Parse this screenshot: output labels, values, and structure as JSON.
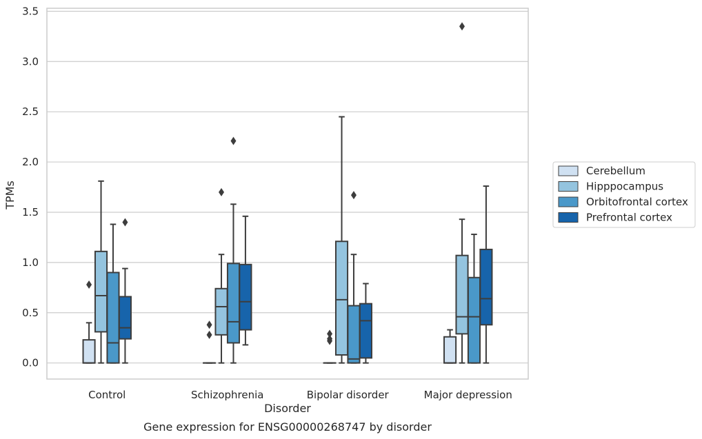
{
  "chart_data": {
    "type": "box",
    "title": "Gene expression for ENSG00000268747 by disorder",
    "xlabel": "Disorder",
    "ylabel": "TPMs",
    "ylim": [
      -0.16,
      3.53
    ],
    "yticks": [
      "0.0",
      "0.5",
      "1.0",
      "1.5",
      "2.0",
      "2.5",
      "3.0",
      "3.5"
    ],
    "categories": [
      "Control",
      "Schizophrenia",
      "Bipolar disorder",
      "Major depression"
    ],
    "legend_position": "right",
    "grid": "horizontal",
    "series": [
      {
        "name": "Cerebellum",
        "color": "#d0e1f2",
        "boxes": [
          {
            "whislo": 0.0,
            "q1": 0.0,
            "med": 0.0,
            "q3": 0.23,
            "whishi": 0.4,
            "fliers": [
              0.78
            ]
          },
          {
            "whislo": 0.0,
            "q1": 0.0,
            "med": 0.0,
            "q3": 0.0,
            "whishi": 0.0,
            "fliers": [
              0.28,
              0.38
            ]
          },
          {
            "whislo": 0.0,
            "q1": 0.0,
            "med": 0.0,
            "q3": 0.0,
            "whishi": 0.0,
            "fliers": [
              0.22,
              0.24,
              0.29
            ]
          },
          {
            "whislo": 0.0,
            "q1": 0.0,
            "med": 0.0,
            "q3": 0.26,
            "whishi": 0.33,
            "fliers": []
          }
        ]
      },
      {
        "name": "Hipppocampus",
        "color": "#94c4df",
        "boxes": [
          {
            "whislo": 0.0,
            "q1": 0.31,
            "med": 0.67,
            "q3": 1.11,
            "whishi": 1.81,
            "fliers": []
          },
          {
            "whislo": 0.0,
            "q1": 0.28,
            "med": 0.56,
            "q3": 0.74,
            "whishi": 1.08,
            "fliers": [
              1.7
            ]
          },
          {
            "whislo": 0.0,
            "q1": 0.08,
            "med": 0.63,
            "q3": 1.21,
            "whishi": 2.45,
            "fliers": []
          },
          {
            "whislo": 0.0,
            "q1": 0.29,
            "med": 0.46,
            "q3": 1.07,
            "whishi": 1.43,
            "fliers": [
              3.35
            ]
          }
        ]
      },
      {
        "name": "Orbitofrontal cortex",
        "color": "#4a98c9",
        "boxes": [
          {
            "whislo": 0.0,
            "q1": 0.0,
            "med": 0.2,
            "q3": 0.9,
            "whishi": 1.38,
            "fliers": []
          },
          {
            "whislo": 0.0,
            "q1": 0.2,
            "med": 0.41,
            "q3": 0.99,
            "whishi": 1.58,
            "fliers": [
              2.21
            ]
          },
          {
            "whislo": 0.0,
            "q1": 0.0,
            "med": 0.04,
            "q3": 0.57,
            "whishi": 1.08,
            "fliers": [
              1.67
            ]
          },
          {
            "whislo": 0.0,
            "q1": 0.0,
            "med": 0.46,
            "q3": 0.85,
            "whishi": 1.28,
            "fliers": []
          }
        ]
      },
      {
        "name": "Prefrontal cortex",
        "color": "#1764ab",
        "boxes": [
          {
            "whislo": 0.0,
            "q1": 0.24,
            "med": 0.35,
            "q3": 0.66,
            "whishi": 0.94,
            "fliers": [
              1.4
            ]
          },
          {
            "whislo": 0.18,
            "q1": 0.33,
            "med": 0.61,
            "q3": 0.98,
            "whishi": 1.46,
            "fliers": []
          },
          {
            "whislo": 0.0,
            "q1": 0.05,
            "med": 0.42,
            "q3": 0.59,
            "whishi": 0.79,
            "fliers": []
          },
          {
            "whislo": 0.0,
            "q1": 0.38,
            "med": 0.64,
            "q3": 1.13,
            "whishi": 1.76,
            "fliers": []
          }
        ]
      }
    ]
  }
}
